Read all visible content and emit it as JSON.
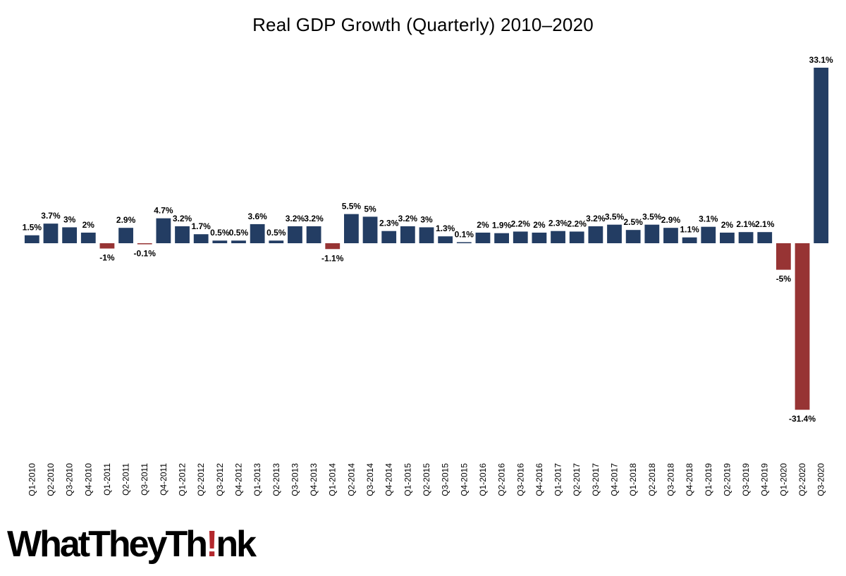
{
  "title": "Real GDP Growth (Quarterly) 2010–2020",
  "colors": {
    "positive": "#233d63",
    "negative": "#973434",
    "text": "#000000"
  },
  "logo": {
    "text_before": "WhatTheyTh",
    "text_bang": "!",
    "text_after": "nk"
  },
  "chart_data": {
    "type": "bar",
    "title": "Real GDP Growth (Quarterly) 2010–2020",
    "xlabel": "",
    "ylabel": "",
    "grid": false,
    "legend": "none",
    "ylim": [
      -31.4,
      33.1
    ],
    "categories": [
      "Q1-2010",
      "Q2-2010",
      "Q3-2010",
      "Q4-2010",
      "Q1-2011",
      "Q2-2011",
      "Q3-2011",
      "Q4-2011",
      "Q1-2012",
      "Q2-2012",
      "Q3-2012",
      "Q4-2012",
      "Q1-2013",
      "Q2-2013",
      "Q3-2013",
      "Q4-2013",
      "Q1-2014",
      "Q2-2014",
      "Q3-2014",
      "Q4-2014",
      "Q1-2015",
      "Q2-2015",
      "Q3-2015",
      "Q4-2015",
      "Q1-2016",
      "Q2-2016",
      "Q3-2016",
      "Q4-2016",
      "Q1-2017",
      "Q2-2017",
      "Q3-2017",
      "Q4-2017",
      "Q1-2018",
      "Q2-2018",
      "Q3-2018",
      "Q4-2018",
      "Q1-2019",
      "Q2-2019",
      "Q3-2019",
      "Q4-2019",
      "Q1-2020",
      "Q2-2020",
      "Q3-2020"
    ],
    "values": [
      1.5,
      3.7,
      3,
      2,
      -1,
      2.9,
      -0.1,
      4.7,
      3.2,
      1.7,
      0.5,
      0.5,
      3.6,
      0.5,
      3.2,
      3.2,
      -1.1,
      5.5,
      5,
      2.3,
      3.2,
      3,
      1.3,
      0.1,
      2,
      1.9,
      2.2,
      2,
      2.3,
      2.2,
      3.2,
      3.5,
      2.5,
      3.5,
      2.9,
      1.1,
      3.1,
      2,
      2.1,
      2.1,
      -5,
      -31.4,
      33.1
    ],
    "data_labels": [
      "1.5%",
      "3.7%",
      "3%",
      "2%",
      "-1%",
      "2.9%",
      "-0.1%",
      "4.7%",
      "3.2%",
      "1.7%",
      "0.5%",
      "0.5%",
      "3.6%",
      "0.5%",
      "3.2%",
      "3.2%",
      "-1.1%",
      "5.5%",
      "5%",
      "2.3%",
      "3.2%",
      "3%",
      "1.3%",
      "0.1%",
      "2%",
      "1.9%",
      "2.2%",
      "2%",
      "2.3%",
      "2.2%",
      "3.2%",
      "3.5%",
      "2.5%",
      "3.5%",
      "2.9%",
      "1.1%",
      "3.1%",
      "2%",
      "2.1%",
      "2.1%",
      "-5%",
      "-31.4%",
      "33.1%"
    ]
  }
}
